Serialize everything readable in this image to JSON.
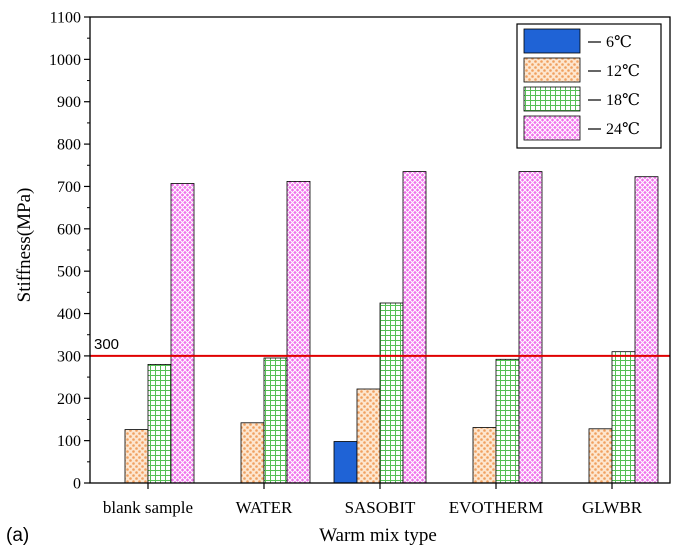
{
  "panel_label": "(a)",
  "chart_data": {
    "type": "bar",
    "xlabel": "Warm mix type",
    "ylabel": "Stiffness(MPa)",
    "ylim": [
      0,
      1100
    ],
    "yticks": [
      0,
      100,
      200,
      300,
      400,
      500,
      600,
      700,
      800,
      900,
      1000,
      1100
    ],
    "grid": false,
    "legend_position": "top-right",
    "categories": [
      "blank sample",
      "WATER",
      "SASOBIT",
      "EVOTHERM",
      "GLWBR"
    ],
    "series": [
      {
        "name": "6℃",
        "color": "#1f63d6",
        "pattern": "solid",
        "values": [
          0,
          0,
          98,
          0,
          0
        ]
      },
      {
        "name": "12℃",
        "color": "#f0a060",
        "pattern": "dots",
        "values": [
          126,
          142,
          222,
          131,
          128
        ]
      },
      {
        "name": "18℃",
        "color": "#55c055",
        "pattern": "grid",
        "values": [
          280,
          295,
          425,
          292,
          310
        ]
      },
      {
        "name": "24℃",
        "color": "#e030d8",
        "pattern": "cross",
        "values": [
          707,
          712,
          735,
          735,
          723
        ]
      }
    ],
    "reference_line": {
      "value": 300,
      "label": "300",
      "color": "#e00000"
    }
  }
}
